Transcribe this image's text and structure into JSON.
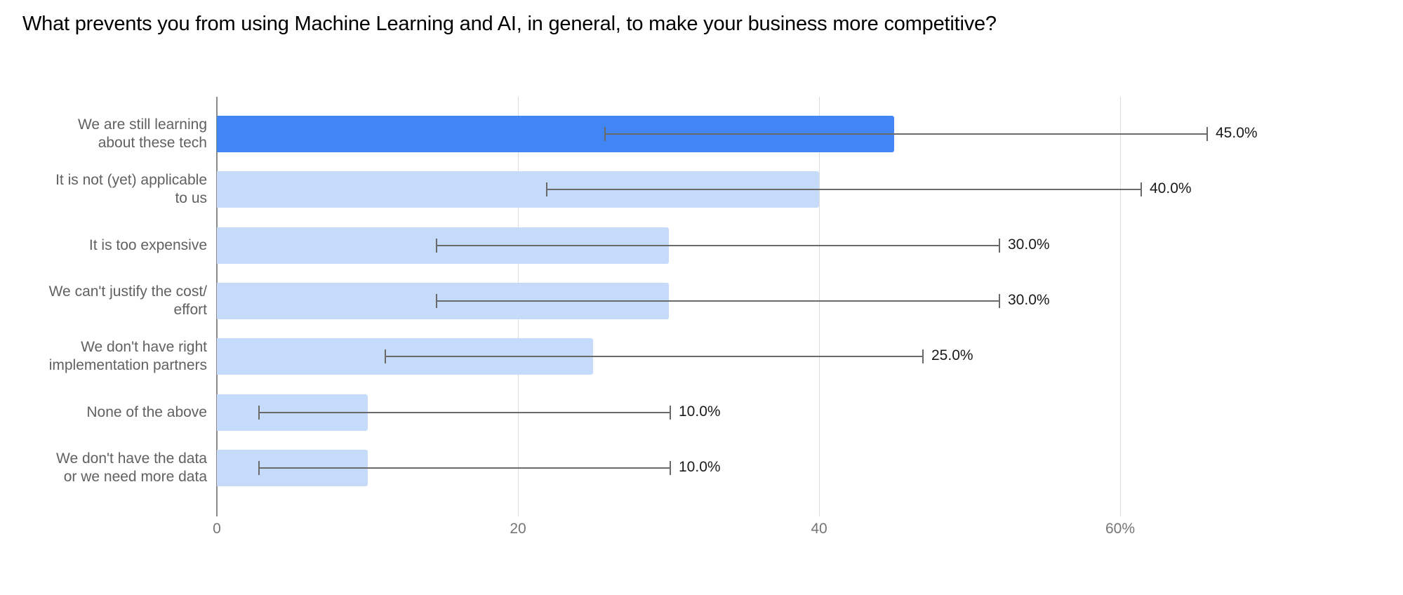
{
  "title": "What prevents you from using Machine Learning and AI, in general, to make your business more competitive?",
  "colors": {
    "highlight_bar": "#4285f4",
    "default_bar": "#c6daf9",
    "error_bar": "#6a6a6a",
    "grid": "#dcdcdc"
  },
  "x_axis": {
    "ticks": [
      {
        "value": 0,
        "label": "0"
      },
      {
        "value": 20,
        "label": "20"
      },
      {
        "value": 40,
        "label": "40"
      },
      {
        "value": 60,
        "label": "60%"
      }
    ]
  },
  "rows": [
    {
      "label_lines": [
        "We are still learning",
        "about these tech"
      ],
      "value": 45,
      "value_label": "45.0%",
      "err_low": 25.8,
      "err_high": 65.8,
      "highlight": true
    },
    {
      "label_lines": [
        "It is not (yet) applicable",
        "to us"
      ],
      "value": 40,
      "value_label": "40.0%",
      "err_low": 21.9,
      "err_high": 61.4,
      "highlight": false
    },
    {
      "label_lines": [
        "It is too expensive"
      ],
      "value": 30,
      "value_label": "30.0%",
      "err_low": 14.6,
      "err_high": 52.0,
      "highlight": false
    },
    {
      "label_lines": [
        "We can't justify the cost/",
        "effort"
      ],
      "value": 30,
      "value_label": "30.0%",
      "err_low": 14.6,
      "err_high": 52.0,
      "highlight": false
    },
    {
      "label_lines": [
        "We don't have right",
        "implementation partners"
      ],
      "value": 25,
      "value_label": "25.0%",
      "err_low": 11.2,
      "err_high": 46.9,
      "highlight": false
    },
    {
      "label_lines": [
        "None of the above"
      ],
      "value": 10,
      "value_label": "10.0%",
      "err_low": 2.8,
      "err_high": 30.1,
      "highlight": false
    },
    {
      "label_lines": [
        "We don't have the data",
        "or we need more data"
      ],
      "value": 10,
      "value_label": "10.0%",
      "err_low": 2.8,
      "err_high": 30.1,
      "highlight": false
    }
  ],
  "chart_data": {
    "type": "bar",
    "orientation": "horizontal",
    "title": "What prevents you from using Machine Learning and AI, in general, to make your business more competitive?",
    "categories": [
      "We are still learning about these tech",
      "It is not (yet) applicable to us",
      "It is too expensive",
      "We can't justify the cost/ effort",
      "We don't have right implementation partners",
      "None of the above",
      "We don't have the data or we need more data"
    ],
    "values": [
      45,
      40,
      30,
      30,
      25,
      10,
      10
    ],
    "data_labels": [
      "45.0%",
      "40.0%",
      "30.0%",
      "30.0%",
      "25.0%",
      "10.0%",
      "10.0%"
    ],
    "error_bars": {
      "low": [
        25.8,
        21.9,
        14.6,
        14.6,
        11.2,
        2.8,
        2.8
      ],
      "high": [
        65.8,
        61.4,
        52.0,
        52.0,
        46.9,
        30.1,
        30.1
      ]
    },
    "highlighted_category": "We are still learning about these tech",
    "xlabel": "",
    "ylabel": "",
    "xlim": [
      0,
      70
    ],
    "x_ticks": [
      "0",
      "20",
      "40",
      "60%"
    ],
    "grid": true,
    "legend": "none"
  }
}
